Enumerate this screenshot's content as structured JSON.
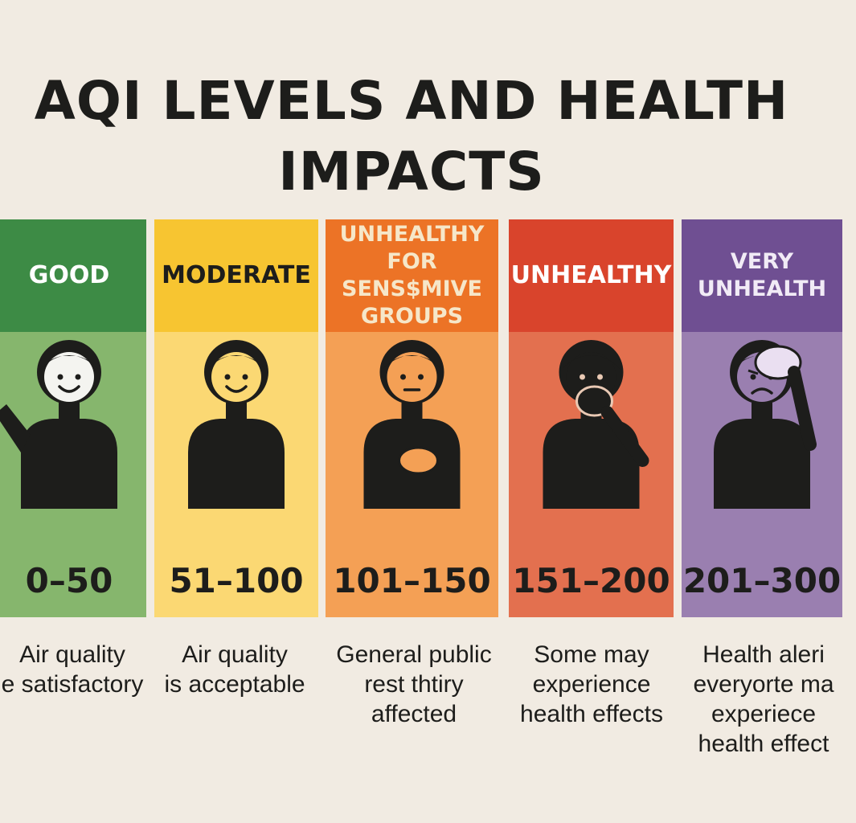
{
  "title": {
    "line1": "AQI LEVELS AND HEALTH",
    "line2": "IMPACTS"
  },
  "levels": [
    {
      "label_lines": [
        "GOOD"
      ],
      "range": "0–50",
      "desc_lines": [
        "Air quality",
        "e satisfactory"
      ],
      "head_color": "#3d8b45",
      "body_color": "#86b66d",
      "label_color": "#ffffff",
      "face": "smile",
      "gesture": "wave"
    },
    {
      "label_lines": [
        "MODERATE"
      ],
      "range": "51–100",
      "desc_lines": [
        "Air quality",
        "is acceptable"
      ],
      "head_color": "#f7c531",
      "body_color": "#fbd873",
      "label_color": "#1d1d1b",
      "face": "smile",
      "gesture": "none"
    },
    {
      "label_lines": [
        "UNHEALTHY",
        "FOR SENS$MIVE",
        "GROUPS"
      ],
      "range": "101–150",
      "desc_lines": [
        "General public",
        "rest thtiry",
        "affected"
      ],
      "head_color": "#ec7326",
      "body_color": "#f4a055",
      "label_color": "#f6e7c9",
      "face": "neutral",
      "gesture": "chest"
    },
    {
      "label_lines": [
        "UNHEALTHY"
      ],
      "range": "151–200",
      "desc_lines": [
        "Some may",
        "experience",
        "health effects"
      ],
      "head_color": "#d9442c",
      "body_color": "#e3704f",
      "label_color": "#ffffff",
      "face": "dark",
      "gesture": "mouth"
    },
    {
      "label_lines": [
        "VERY",
        "UNHEALTH"
      ],
      "range": "201–300",
      "desc_lines": [
        "Health aleri",
        "everyorte ma",
        "experiece",
        "health effect"
      ],
      "head_color": "#6f4f92",
      "body_color": "#9a7fb0",
      "label_color": "#f1ebf6",
      "face": "sad",
      "gesture": "head"
    }
  ]
}
